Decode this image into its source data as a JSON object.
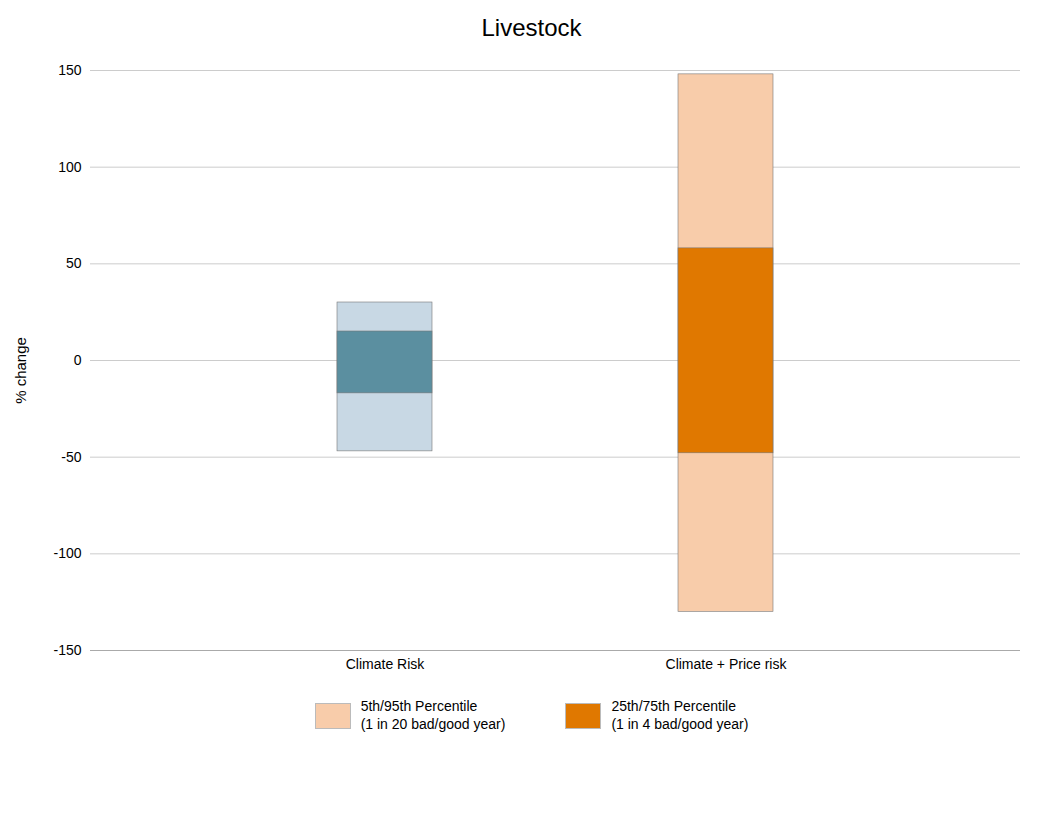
{
  "chart_data": {
    "type": "bar",
    "title": "Livestock",
    "ylabel": "% change",
    "categories": [
      "Climate Risk",
      "Climate + Price risk"
    ],
    "series": [
      {
        "name": "5th/95th Percentile\n(1 in 20 bad/good year)",
        "color": "#f8ccaa",
        "colors": [
          "#c8d8e4",
          "#f8ccaa"
        ],
        "bottom": [
          -47,
          -130
        ],
        "top": [
          30,
          148
        ]
      },
      {
        "name": "25th/75th Percentile\n(1 in 4 bad/good year)",
        "color": "#e07800",
        "colors": [
          "#5b8fa0",
          "#e07800"
        ],
        "bottom": [
          -17,
          -48
        ],
        "top": [
          15,
          58
        ]
      }
    ],
    "ylim": [
      -150,
      150
    ],
    "yticks": [
      -150,
      -100,
      -50,
      0,
      50,
      100,
      150
    ],
    "grid": true,
    "legend": "bottom"
  }
}
